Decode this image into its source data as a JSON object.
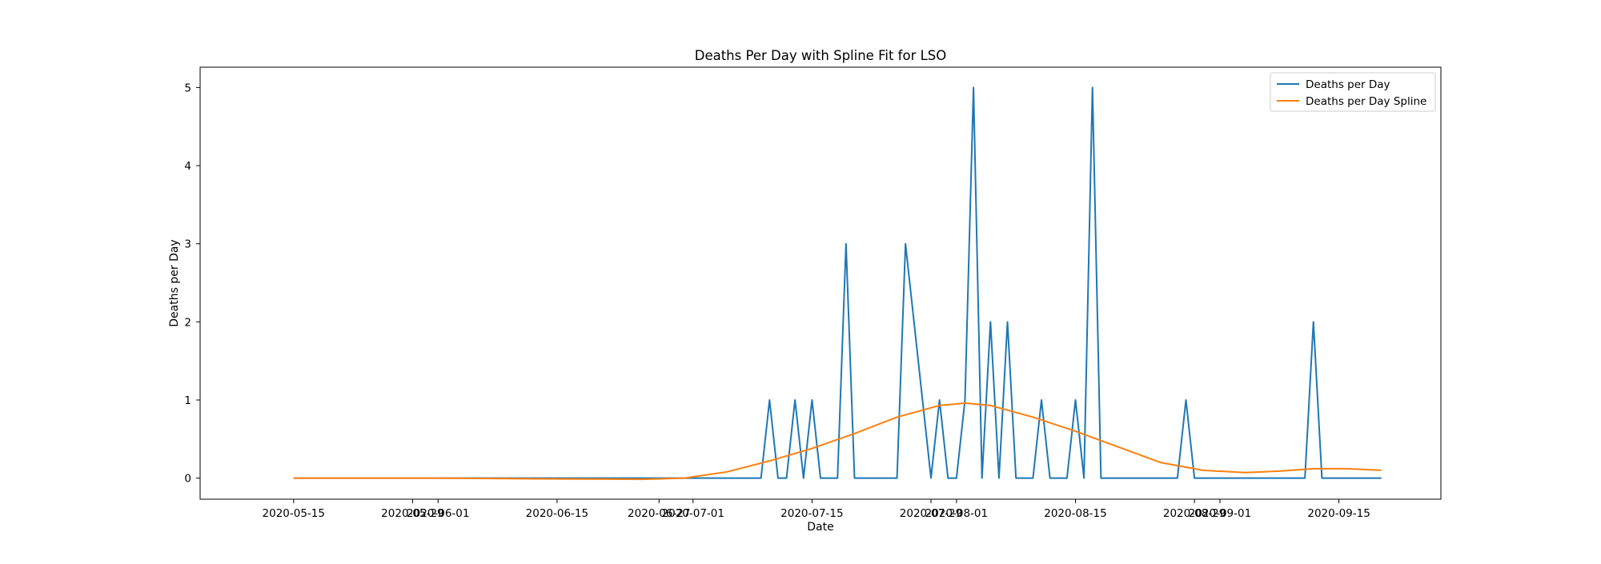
{
  "chart_data": {
    "type": "line",
    "title": "Deaths Per Day with Spline Fit for LSO",
    "xlabel": "Date",
    "ylabel": "Deaths per Day",
    "xlim": [
      "2020-05-04",
      "2020-09-27"
    ],
    "ylim": [
      -0.27,
      5.26
    ],
    "grid": false,
    "legend_position": "top-right",
    "x_tick_labels": [
      "2020-05-15",
      "2020-05-29",
      "2020-06-01",
      "2020-06-15",
      "2020-06-27",
      "2020-07-01",
      "2020-07-15",
      "2020-07-29",
      "2020-08-01",
      "2020-08-15",
      "2020-08-29",
      "2020-09-01",
      "2020-09-15"
    ],
    "y_ticks": [
      0,
      1,
      2,
      3,
      4,
      5
    ],
    "series": [
      {
        "name": "Deaths per Day",
        "color": "#1f77b4",
        "style": "line",
        "x": [
          "2020-05-15",
          "2020-07-09",
          "2020-07-10",
          "2020-07-11",
          "2020-07-12",
          "2020-07-13",
          "2020-07-14",
          "2020-07-15",
          "2020-07-16",
          "2020-07-18",
          "2020-07-19",
          "2020-07-20",
          "2020-07-25",
          "2020-07-26",
          "2020-07-29",
          "2020-07-30",
          "2020-07-31",
          "2020-08-01",
          "2020-08-02",
          "2020-08-03",
          "2020-08-04",
          "2020-08-05",
          "2020-08-06",
          "2020-08-07",
          "2020-08-08",
          "2020-08-10",
          "2020-08-11",
          "2020-08-12",
          "2020-08-14",
          "2020-08-15",
          "2020-08-16",
          "2020-08-17",
          "2020-08-18",
          "2020-08-27",
          "2020-08-28",
          "2020-08-29",
          "2020-09-11",
          "2020-09-12",
          "2020-09-13",
          "2020-09-20"
        ],
        "y": [
          0,
          0,
          1,
          0,
          0,
          1,
          0,
          1,
          0,
          0,
          3,
          0,
          0,
          3,
          0,
          1,
          0,
          0,
          1,
          5,
          0,
          2,
          0,
          2,
          0,
          0,
          1,
          0,
          0,
          1,
          0,
          5,
          0,
          0,
          1,
          0,
          0,
          2,
          0,
          0
        ]
      },
      {
        "name": "Deaths per Day Spline",
        "color": "#ff7f0e",
        "style": "line",
        "x": [
          "2020-05-15",
          "2020-06-01",
          "2020-06-15",
          "2020-06-25",
          "2020-06-30",
          "2020-07-05",
          "2020-07-10",
          "2020-07-15",
          "2020-07-20",
          "2020-07-25",
          "2020-07-30",
          "2020-08-02",
          "2020-08-05",
          "2020-08-10",
          "2020-08-15",
          "2020-08-20",
          "2020-08-25",
          "2020-08-30",
          "2020-09-04",
          "2020-09-08",
          "2020-09-12",
          "2020-09-16",
          "2020-09-20"
        ],
        "y": [
          0,
          0.0,
          -0.01,
          -0.015,
          0.0,
          0.08,
          0.22,
          0.38,
          0.57,
          0.78,
          0.93,
          0.96,
          0.93,
          0.78,
          0.6,
          0.4,
          0.2,
          0.1,
          0.07,
          0.09,
          0.12,
          0.12,
          0.1
        ]
      }
    ]
  }
}
